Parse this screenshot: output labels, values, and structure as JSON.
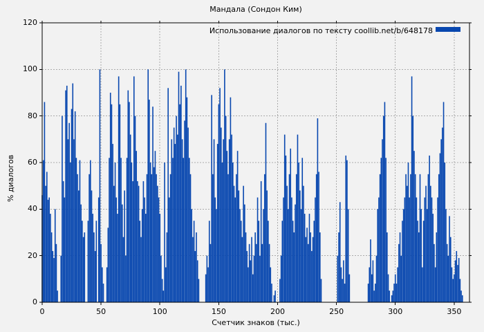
{
  "chart_data": {
    "type": "bar",
    "style": "impulses",
    "title": "Мандала (Сондон Ким)",
    "legend": "Использование диалогов по тексту coollib.net/b/648178",
    "legend_position": "top-right-inside",
    "xlabel": "Счетчик знаков (тыс.)",
    "ylabel": "% диалогов",
    "xlim": [
      0,
      363
    ],
    "ylim": [
      0,
      120
    ],
    "x_ticks": [
      0,
      50,
      100,
      150,
      200,
      250,
      300,
      350
    ],
    "y_ticks": [
      0,
      20,
      40,
      60,
      80,
      100,
      120
    ],
    "grid": true,
    "grid_color": "#aaaaaa",
    "bar_color": "#0847af",
    "background": "#f2f2f2",
    "border_color": "#000000",
    "x_start": 0,
    "x_step": 1,
    "values": [
      46,
      61,
      86,
      50,
      56,
      44,
      45,
      38,
      30,
      22,
      19,
      40,
      25,
      5,
      0,
      0,
      20,
      80,
      52,
      45,
      91,
      93,
      70,
      77,
      60,
      83,
      94,
      70,
      82,
      62,
      55,
      48,
      61,
      42,
      35,
      28,
      30,
      0,
      0,
      35,
      55,
      61,
      48,
      38,
      30,
      22,
      35,
      0,
      45,
      100,
      25,
      15,
      8,
      0,
      0,
      15,
      32,
      62,
      90,
      85,
      68,
      50,
      60,
      45,
      38,
      97,
      85,
      62,
      42,
      28,
      48,
      20,
      62,
      91,
      86,
      72,
      60,
      52,
      97,
      80,
      65,
      52,
      50,
      35,
      28,
      40,
      52,
      45,
      38,
      55,
      100,
      87,
      60,
      55,
      84,
      58,
      65,
      55,
      50,
      45,
      38,
      20,
      10,
      5,
      60,
      15,
      30,
      92,
      45,
      55,
      70,
      62,
      75,
      68,
      80,
      72,
      99,
      85,
      93,
      70,
      62,
      78,
      100,
      88,
      75,
      62,
      55,
      40,
      28,
      35,
      22,
      30,
      18,
      10,
      0,
      0,
      0,
      0,
      0,
      12,
      20,
      15,
      35,
      25,
      89,
      55,
      70,
      45,
      40,
      68,
      85,
      92,
      75,
      60,
      70,
      100,
      80,
      65,
      55,
      70,
      88,
      72,
      60,
      50,
      45,
      55,
      65,
      48,
      40,
      35,
      28,
      50,
      42,
      30,
      22,
      15,
      25,
      18,
      28,
      12,
      20,
      30,
      25,
      45,
      35,
      20,
      52,
      25,
      40,
      55,
      77,
      48,
      35,
      25,
      15,
      8,
      0,
      3,
      5,
      0,
      0,
      0,
      10,
      20,
      35,
      45,
      72,
      63,
      50,
      40,
      55,
      66,
      45,
      35,
      30,
      42,
      55,
      72,
      60,
      48,
      40,
      62,
      50,
      38,
      28,
      32,
      25,
      38,
      30,
      22,
      28,
      35,
      45,
      55,
      79,
      56,
      30,
      10,
      0,
      0,
      0,
      0,
      0,
      0,
      0,
      0,
      0,
      0,
      0,
      0,
      0,
      20,
      30,
      43,
      15,
      10,
      18,
      8,
      63,
      61,
      40,
      12,
      0,
      0,
      0,
      0,
      0,
      0,
      0,
      0,
      0,
      0,
      0,
      0,
      0,
      0,
      0,
      8,
      15,
      27,
      12,
      18,
      5,
      8,
      20,
      40,
      45,
      55,
      62,
      70,
      80,
      86,
      62,
      30,
      12,
      5,
      0,
      3,
      5,
      8,
      12,
      8,
      15,
      25,
      30,
      20,
      35,
      40,
      45,
      55,
      50,
      60,
      45,
      55,
      97,
      80,
      65,
      55,
      45,
      35,
      30,
      55,
      40,
      15,
      35,
      45,
      50,
      40,
      55,
      63,
      50,
      45,
      38,
      25,
      15,
      30,
      45,
      55,
      64,
      70,
      75,
      86,
      60,
      40,
      25,
      20,
      37,
      28,
      15,
      10,
      12,
      18,
      22,
      16,
      19,
      10,
      5,
      3,
      0
    ]
  }
}
